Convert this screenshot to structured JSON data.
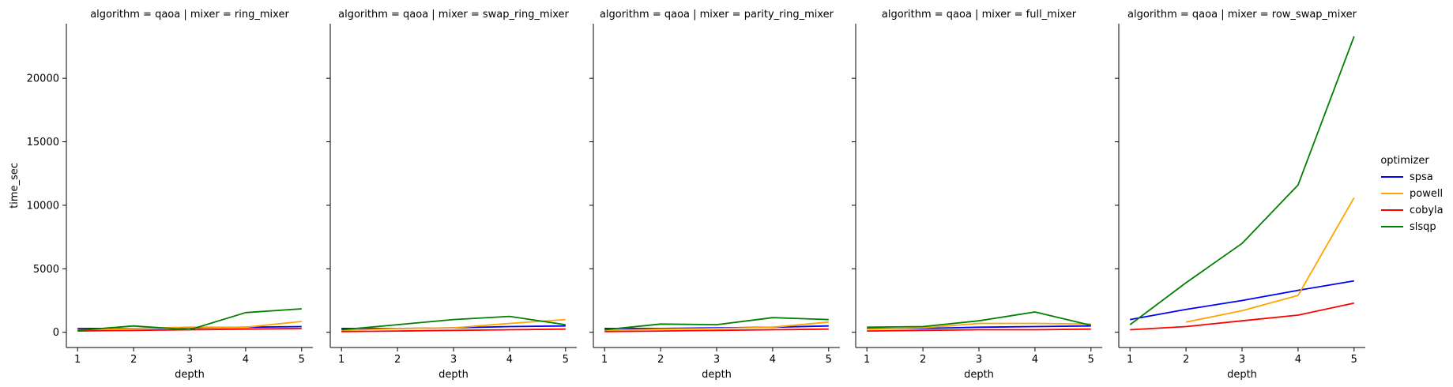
{
  "chart_data": {
    "type": "line",
    "xlabel": "depth",
    "ylabel": "time_sec",
    "x": [
      1,
      2,
      3,
      4,
      5
    ],
    "x_ticks": [
      "1",
      "2",
      "3",
      "4",
      "5"
    ],
    "y_ticks": [
      "0",
      "5000",
      "10000",
      "15000",
      "20000"
    ],
    "ylim": [
      -1200,
      24300
    ],
    "xlim": [
      0.8,
      5.2
    ],
    "grid": false,
    "legend": {
      "title": "optimizer",
      "placement": "right",
      "entries": [
        {
          "name": "spsa",
          "color": "#0000ff"
        },
        {
          "name": "powell",
          "color": "#ffa500"
        },
        {
          "name": "cobyla",
          "color": "#ff0000"
        },
        {
          "name": "slsqp",
          "color": "#008000"
        }
      ]
    },
    "panels": [
      {
        "title": "algorithm = qaoa | mixer = ring_mixer",
        "series": [
          {
            "name": "spsa",
            "values": [
              300,
              300,
              350,
              400,
              450
            ]
          },
          {
            "name": "powell",
            "values": [
              200,
              300,
              400,
              400,
              850
            ]
          },
          {
            "name": "cobyla",
            "values": [
              100,
              150,
              200,
              250,
              300
            ]
          },
          {
            "name": "slsqp",
            "values": [
              150,
              500,
              200,
              1550,
              1850
            ]
          }
        ]
      },
      {
        "title": "algorithm = qaoa | mixer = swap_ring_mixer",
        "series": [
          {
            "name": "spsa",
            "values": [
              300,
              300,
              350,
              450,
              500
            ]
          },
          {
            "name": "powell",
            "values": [
              150,
              300,
              350,
              700,
              1000
            ]
          },
          {
            "name": "cobyla",
            "values": [
              50,
              100,
              150,
              200,
              250
            ]
          },
          {
            "name": "slsqp",
            "values": [
              200,
              600,
              1000,
              1250,
              600
            ]
          }
        ]
      },
      {
        "title": "algorithm = qaoa | mixer = parity_ring_mixer",
        "series": [
          {
            "name": "spsa",
            "values": [
              300,
              300,
              350,
              400,
              500
            ]
          },
          {
            "name": "powell",
            "values": [
              150,
              250,
              300,
              400,
              800
            ]
          },
          {
            "name": "cobyla",
            "values": [
              50,
              100,
              150,
              200,
              250
            ]
          },
          {
            "name": "slsqp",
            "values": [
              200,
              650,
              600,
              1150,
              1000
            ]
          }
        ]
      },
      {
        "title": "algorithm = qaoa | mixer = full_mixer",
        "series": [
          {
            "name": "spsa",
            "values": [
              300,
              300,
              400,
              450,
              500
            ]
          },
          {
            "name": "powell",
            "values": [
              250,
              350,
              700,
              700,
              650
            ]
          },
          {
            "name": "cobyla",
            "values": [
              100,
              150,
              200,
              200,
              250
            ]
          },
          {
            "name": "slsqp",
            "values": [
              400,
              450,
              900,
              1600,
              550
            ]
          }
        ]
      },
      {
        "title": "algorithm = qaoa | mixer = row_swap_mixer",
        "series": [
          {
            "name": "spsa",
            "values": [
              1000,
              1800,
              2500,
              3300,
              4050
            ]
          },
          {
            "name": "powell",
            "values": [
              null,
              800,
              1700,
              2900,
              10600
            ]
          },
          {
            "name": "cobyla",
            "values": [
              200,
              450,
              900,
              1350,
              2300
            ]
          },
          {
            "name": "slsqp",
            "values": [
              600,
              3900,
              7000,
              11600,
              23300
            ]
          }
        ]
      }
    ]
  }
}
